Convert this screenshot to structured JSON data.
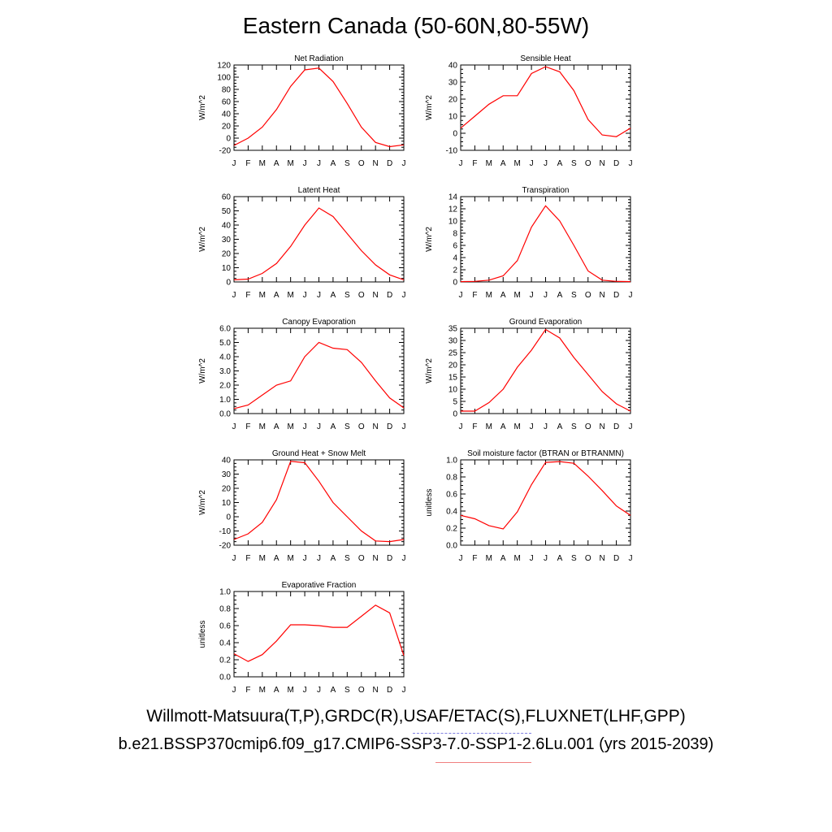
{
  "title": "Eastern Canada (50-60N,80-55W)",
  "footer": {
    "observations": "Willmott-Matsuura(T,P),GRDC(R),USAF/ETAC(S),FLUXNET(LHF,GPP)",
    "case": "b.e21.BSSP370cmip6.f09_g17.CMIP6-SSP3-7.0-SSP1-2.6Lu.001 (yrs 2015-2039)"
  },
  "colors": {
    "series": "#ff0000",
    "obs_legend": "#8080e0",
    "case_legend": "#f08080"
  },
  "chart_data": [
    {
      "type": "line",
      "title": "Net Radiation",
      "ylabel": "W/m^2",
      "x": [
        "J",
        "F",
        "M",
        "A",
        "M",
        "J",
        "J",
        "A",
        "S",
        "O",
        "N",
        "D",
        "J"
      ],
      "ylim": [
        -20,
        120
      ],
      "yticks": [
        "-20",
        "0",
        "20",
        "40",
        "60",
        "80",
        "100",
        "120"
      ],
      "series": [
        {
          "values": [
            -12,
            0,
            18,
            47,
            85,
            112,
            115,
            93,
            57,
            18,
            -7,
            -14,
            -11
          ]
        }
      ]
    },
    {
      "type": "line",
      "title": "Sensible Heat",
      "ylabel": "W/m^2",
      "x": [
        "J",
        "F",
        "M",
        "A",
        "M",
        "J",
        "J",
        "A",
        "S",
        "O",
        "N",
        "D",
        "J"
      ],
      "ylim": [
        -10,
        40
      ],
      "yticks": [
        "-10",
        "0",
        "10",
        "20",
        "30",
        "40"
      ],
      "series": [
        {
          "values": [
            3,
            10,
            17,
            22,
            22,
            35,
            39,
            36,
            25,
            8,
            -1,
            -2,
            3
          ]
        }
      ]
    },
    {
      "type": "line",
      "title": "Latent Heat",
      "ylabel": "W/m^2",
      "x": [
        "J",
        "F",
        "M",
        "A",
        "M",
        "J",
        "J",
        "A",
        "S",
        "O",
        "N",
        "D",
        "J"
      ],
      "ylim": [
        0,
        60
      ],
      "yticks": [
        "0",
        "10",
        "20",
        "30",
        "40",
        "50",
        "60"
      ],
      "series": [
        {
          "values": [
            1.5,
            2,
            6,
            13,
            25,
            40,
            52,
            46,
            34,
            22,
            12,
            5,
            1.5
          ]
        }
      ]
    },
    {
      "type": "line",
      "title": "Transpiration",
      "ylabel": "W/m^2",
      "x": [
        "J",
        "F",
        "M",
        "A",
        "M",
        "J",
        "J",
        "A",
        "S",
        "O",
        "N",
        "D",
        "J"
      ],
      "ylim": [
        0,
        14
      ],
      "yticks": [
        "0",
        "2",
        "4",
        "6",
        "8",
        "10",
        "12",
        "14"
      ],
      "series": [
        {
          "values": [
            0.05,
            0.1,
            0.3,
            1,
            3.5,
            9,
            12.5,
            10,
            6,
            1.8,
            0.3,
            0.1,
            0.05
          ]
        }
      ]
    },
    {
      "type": "line",
      "title": "Canopy Evaporation",
      "ylabel": "W/m^2",
      "x": [
        "J",
        "F",
        "M",
        "A",
        "M",
        "J",
        "J",
        "A",
        "S",
        "O",
        "N",
        "D",
        "J"
      ],
      "ylim": [
        0,
        6
      ],
      "yticks": [
        "0.0",
        "1.0",
        "2.0",
        "3.0",
        "4.0",
        "5.0",
        "6.0"
      ],
      "series": [
        {
          "values": [
            0.35,
            0.6,
            1.3,
            2.0,
            2.3,
            4.0,
            5.0,
            4.6,
            4.5,
            3.6,
            2.3,
            1.1,
            0.4
          ]
        }
      ]
    },
    {
      "type": "line",
      "title": "Ground Evaporation",
      "ylabel": "W/m^2",
      "x": [
        "J",
        "F",
        "M",
        "A",
        "M",
        "J",
        "J",
        "A",
        "S",
        "O",
        "N",
        "D",
        "J"
      ],
      "ylim": [
        0,
        35
      ],
      "yticks": [
        "0",
        "5",
        "10",
        "15",
        "20",
        "25",
        "30",
        "35"
      ],
      "series": [
        {
          "values": [
            1,
            1,
            4.5,
            10,
            19,
            26,
            34.5,
            31,
            23,
            16,
            9,
            4,
            1
          ]
        }
      ]
    },
    {
      "type": "line",
      "title": "Ground Heat + Snow Melt",
      "ylabel": "W/m^2",
      "x": [
        "J",
        "F",
        "M",
        "A",
        "M",
        "J",
        "J",
        "A",
        "S",
        "O",
        "N",
        "D",
        "J"
      ],
      "ylim": [
        -20,
        40
      ],
      "yticks": [
        "-20",
        "-10",
        "0",
        "10",
        "20",
        "30",
        "40"
      ],
      "series": [
        {
          "values": [
            -16,
            -12,
            -4,
            12,
            39,
            38,
            25,
            10,
            0,
            -10,
            -17,
            -17.5,
            -16
          ]
        }
      ]
    },
    {
      "type": "line",
      "title": "Soil moisture factor (BTRAN or BTRANMN)",
      "ylabel": "unitless",
      "x": [
        "J",
        "F",
        "M",
        "A",
        "M",
        "J",
        "J",
        "A",
        "S",
        "O",
        "N",
        "D",
        "J"
      ],
      "ylim": [
        0,
        1
      ],
      "yticks": [
        "0.0",
        "0.2",
        "0.4",
        "0.6",
        "0.8",
        "1.0"
      ],
      "series": [
        {
          "values": [
            0.35,
            0.31,
            0.23,
            0.19,
            0.39,
            0.71,
            0.97,
            0.98,
            0.96,
            0.81,
            0.64,
            0.46,
            0.35
          ]
        }
      ]
    },
    {
      "type": "line",
      "title": "Evaporative Fraction",
      "ylabel": "unitless",
      "x": [
        "J",
        "F",
        "M",
        "A",
        "M",
        "J",
        "J",
        "A",
        "S",
        "O",
        "N",
        "D",
        "J"
      ],
      "ylim": [
        0,
        1
      ],
      "yticks": [
        "0.0",
        "0.2",
        "0.4",
        "0.6",
        "0.8",
        "1.0"
      ],
      "series": [
        {
          "values": [
            0.27,
            0.18,
            0.26,
            0.42,
            0.61,
            0.61,
            0.6,
            0.58,
            0.58,
            0.71,
            0.84,
            0.75,
            0.25
          ]
        }
      ]
    }
  ]
}
